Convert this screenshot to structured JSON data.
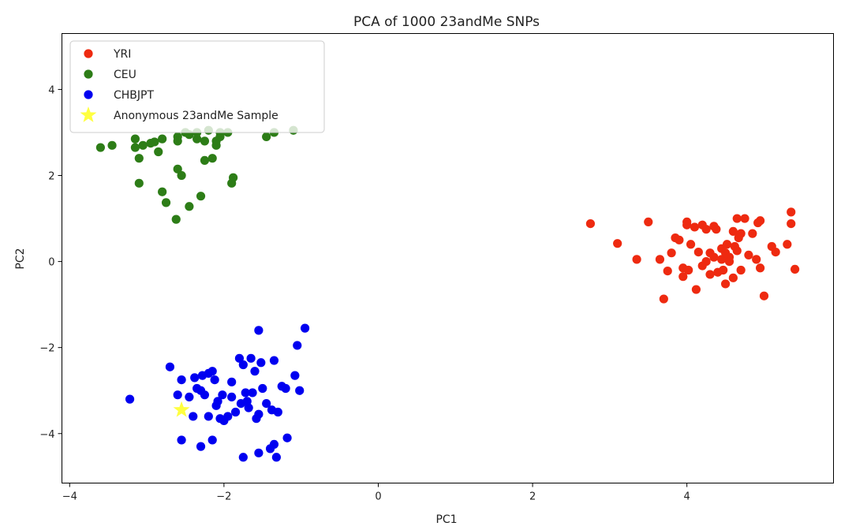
{
  "chart_data": {
    "type": "scatter",
    "title": "PCA of 1000 23andMe SNPs",
    "xlabel": "PC1",
    "ylabel": "PC2",
    "xlim": [
      -4.1,
      5.9
    ],
    "ylim": [
      -5.15,
      5.3
    ],
    "xticks": [
      {
        "v": -4,
        "label": "−4"
      },
      {
        "v": -2,
        "label": "−2"
      },
      {
        "v": 0,
        "label": "0"
      },
      {
        "v": 2,
        "label": "2"
      },
      {
        "v": 4,
        "label": "4"
      }
    ],
    "yticks": [
      {
        "v": -4,
        "label": "−4"
      },
      {
        "v": -2,
        "label": "−2"
      },
      {
        "v": 0,
        "label": "0"
      },
      {
        "v": 2,
        "label": "2"
      },
      {
        "v": 4,
        "label": "4"
      }
    ],
    "grid": false,
    "legend_position": "top-left",
    "series": [
      {
        "name": "YRI",
        "color": "#ee2a10",
        "marker": "circle",
        "points": [
          [
            2.75,
            0.88
          ],
          [
            3.1,
            0.42
          ],
          [
            3.5,
            0.92
          ],
          [
            3.35,
            0.05
          ],
          [
            3.65,
            0.05
          ],
          [
            3.7,
            -0.87
          ],
          [
            3.75,
            -0.22
          ],
          [
            3.8,
            0.2
          ],
          [
            3.85,
            0.55
          ],
          [
            3.9,
            0.5
          ],
          [
            3.95,
            -0.15
          ],
          [
            3.95,
            -0.35
          ],
          [
            4.0,
            0.92
          ],
          [
            4.0,
            0.85
          ],
          [
            4.02,
            -0.2
          ],
          [
            4.05,
            0.4
          ],
          [
            4.1,
            0.8
          ],
          [
            4.12,
            -0.65
          ],
          [
            4.15,
            0.22
          ],
          [
            4.2,
            0.85
          ],
          [
            4.2,
            -0.1
          ],
          [
            4.25,
            0.75
          ],
          [
            4.25,
            0.0
          ],
          [
            4.3,
            0.2
          ],
          [
            4.3,
            -0.3
          ],
          [
            4.35,
            0.82
          ],
          [
            4.35,
            0.1
          ],
          [
            4.38,
            0.75
          ],
          [
            4.4,
            -0.25
          ],
          [
            4.45,
            0.05
          ],
          [
            4.45,
            0.3
          ],
          [
            4.47,
            -0.2
          ],
          [
            4.5,
            -0.52
          ],
          [
            4.5,
            0.2
          ],
          [
            4.52,
            0.4
          ],
          [
            4.55,
            0.1
          ],
          [
            4.55,
            0.0
          ],
          [
            4.6,
            0.7
          ],
          [
            4.6,
            -0.38
          ],
          [
            4.62,
            0.35
          ],
          [
            4.65,
            0.25
          ],
          [
            4.65,
            1.0
          ],
          [
            4.67,
            0.55
          ],
          [
            4.7,
            -0.2
          ],
          [
            4.7,
            0.65
          ],
          [
            4.75,
            1.0
          ],
          [
            4.8,
            0.15
          ],
          [
            4.85,
            0.65
          ],
          [
            4.9,
            0.05
          ],
          [
            4.92,
            0.9
          ],
          [
            4.95,
            -0.15
          ],
          [
            4.95,
            0.95
          ],
          [
            5.0,
            -0.8
          ],
          [
            5.1,
            0.35
          ],
          [
            5.15,
            0.22
          ],
          [
            5.3,
            0.4
          ],
          [
            5.35,
            1.15
          ],
          [
            5.35,
            0.88
          ],
          [
            5.4,
            -0.18
          ]
        ]
      },
      {
        "name": "CEU",
        "color": "#2d7d17",
        "marker": "circle",
        "points": [
          [
            -3.6,
            2.65
          ],
          [
            -3.45,
            2.7
          ],
          [
            -3.15,
            2.85
          ],
          [
            -3.15,
            2.65
          ],
          [
            -3.1,
            2.4
          ],
          [
            -3.1,
            1.82
          ],
          [
            -3.05,
            2.7
          ],
          [
            -2.95,
            2.75
          ],
          [
            -2.9,
            2.78
          ],
          [
            -2.85,
            2.55
          ],
          [
            -2.8,
            2.85
          ],
          [
            -2.8,
            1.62
          ],
          [
            -2.75,
            1.37
          ],
          [
            -2.62,
            0.98
          ],
          [
            -2.6,
            2.9
          ],
          [
            -2.6,
            2.8
          ],
          [
            -2.6,
            2.15
          ],
          [
            -2.55,
            2.0
          ],
          [
            -2.5,
            3.0
          ],
          [
            -2.45,
            2.95
          ],
          [
            -2.45,
            1.28
          ],
          [
            -2.35,
            2.85
          ],
          [
            -2.35,
            3.0
          ],
          [
            -2.3,
            1.52
          ],
          [
            -2.25,
            2.8
          ],
          [
            -2.25,
            2.35
          ],
          [
            -2.2,
            3.05
          ],
          [
            -2.15,
            2.4
          ],
          [
            -2.1,
            2.7
          ],
          [
            -2.1,
            2.8
          ],
          [
            -2.05,
            2.9
          ],
          [
            -2.05,
            3.0
          ],
          [
            -1.95,
            3.0
          ],
          [
            -1.9,
            1.82
          ],
          [
            -1.88,
            1.95
          ],
          [
            -1.45,
            2.9
          ],
          [
            -1.35,
            3.0
          ],
          [
            -1.1,
            3.05
          ]
        ]
      },
      {
        "name": "CHBJPT",
        "color": "#0000f0",
        "marker": "circle",
        "points": [
          [
            -3.22,
            -3.2
          ],
          [
            -2.7,
            -2.45
          ],
          [
            -2.6,
            -3.1
          ],
          [
            -2.55,
            -2.75
          ],
          [
            -2.55,
            -4.15
          ],
          [
            -2.45,
            -3.15
          ],
          [
            -2.4,
            -3.6
          ],
          [
            -2.38,
            -2.7
          ],
          [
            -2.35,
            -2.95
          ],
          [
            -2.3,
            -4.3
          ],
          [
            -2.3,
            -3.0
          ],
          [
            -2.28,
            -2.65
          ],
          [
            -2.25,
            -3.1
          ],
          [
            -2.2,
            -2.6
          ],
          [
            -2.2,
            -3.6
          ],
          [
            -2.15,
            -4.15
          ],
          [
            -2.15,
            -2.55
          ],
          [
            -2.12,
            -2.75
          ],
          [
            -2.1,
            -3.35
          ],
          [
            -2.08,
            -3.25
          ],
          [
            -2.05,
            -3.65
          ],
          [
            -2.02,
            -3.1
          ],
          [
            -2.0,
            -3.7
          ],
          [
            -1.95,
            -3.6
          ],
          [
            -1.9,
            -2.8
          ],
          [
            -1.9,
            -3.15
          ],
          [
            -1.85,
            -3.5
          ],
          [
            -1.8,
            -2.25
          ],
          [
            -1.78,
            -3.3
          ],
          [
            -1.75,
            -2.4
          ],
          [
            -1.75,
            -4.55
          ],
          [
            -1.72,
            -3.05
          ],
          [
            -1.7,
            -3.25
          ],
          [
            -1.68,
            -3.4
          ],
          [
            -1.65,
            -2.25
          ],
          [
            -1.63,
            -3.05
          ],
          [
            -1.6,
            -2.55
          ],
          [
            -1.58,
            -3.65
          ],
          [
            -1.55,
            -1.6
          ],
          [
            -1.55,
            -3.55
          ],
          [
            -1.55,
            -4.45
          ],
          [
            -1.52,
            -2.35
          ],
          [
            -1.5,
            -2.95
          ],
          [
            -1.45,
            -3.3
          ],
          [
            -1.4,
            -4.35
          ],
          [
            -1.38,
            -3.45
          ],
          [
            -1.35,
            -2.3
          ],
          [
            -1.35,
            -4.25
          ],
          [
            -1.32,
            -4.55
          ],
          [
            -1.3,
            -3.5
          ],
          [
            -1.25,
            -2.9
          ],
          [
            -1.2,
            -2.95
          ],
          [
            -1.18,
            -4.1
          ],
          [
            -1.08,
            -2.65
          ],
          [
            -1.05,
            -1.95
          ],
          [
            -1.02,
            -3.0
          ],
          [
            -0.95,
            -1.55
          ]
        ]
      },
      {
        "name": "Anonymous 23andMe Sample",
        "color": "#ffff40",
        "marker": "star",
        "points": [
          [
            -2.55,
            -3.45
          ]
        ]
      }
    ]
  }
}
